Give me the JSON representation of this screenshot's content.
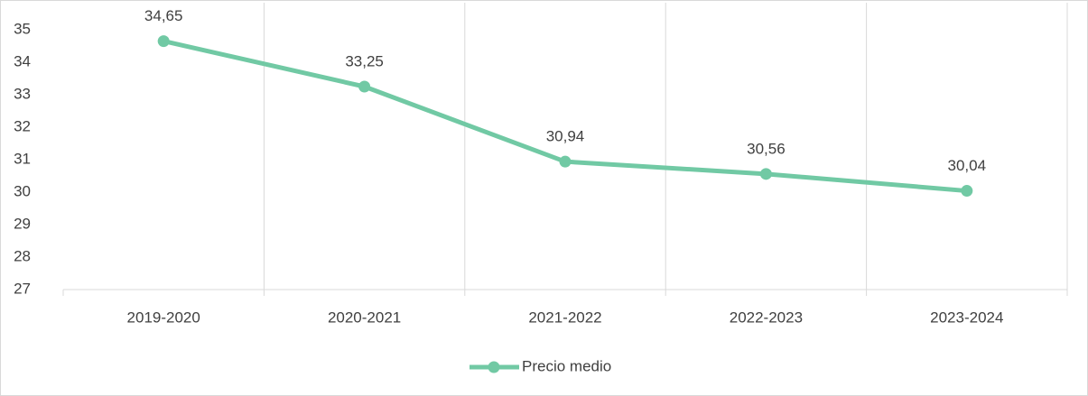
{
  "chart_data": {
    "type": "line",
    "categories": [
      "2019-2020",
      "2020-2021",
      "2021-2022",
      "2022-2023",
      "2023-2024"
    ],
    "series": [
      {
        "name": "Precio medio",
        "color": "#71c9a4",
        "values": [
          34.65,
          33.25,
          30.94,
          30.56,
          30.04
        ],
        "value_labels": [
          "34,65",
          "33,25",
          "30,94",
          "30,56",
          "30,04"
        ]
      }
    ],
    "ylim": [
      27,
      35
    ],
    "yticks": [
      27,
      28,
      29,
      30,
      31,
      32,
      33,
      34,
      35
    ],
    "grid": true,
    "legend": "bottom"
  }
}
